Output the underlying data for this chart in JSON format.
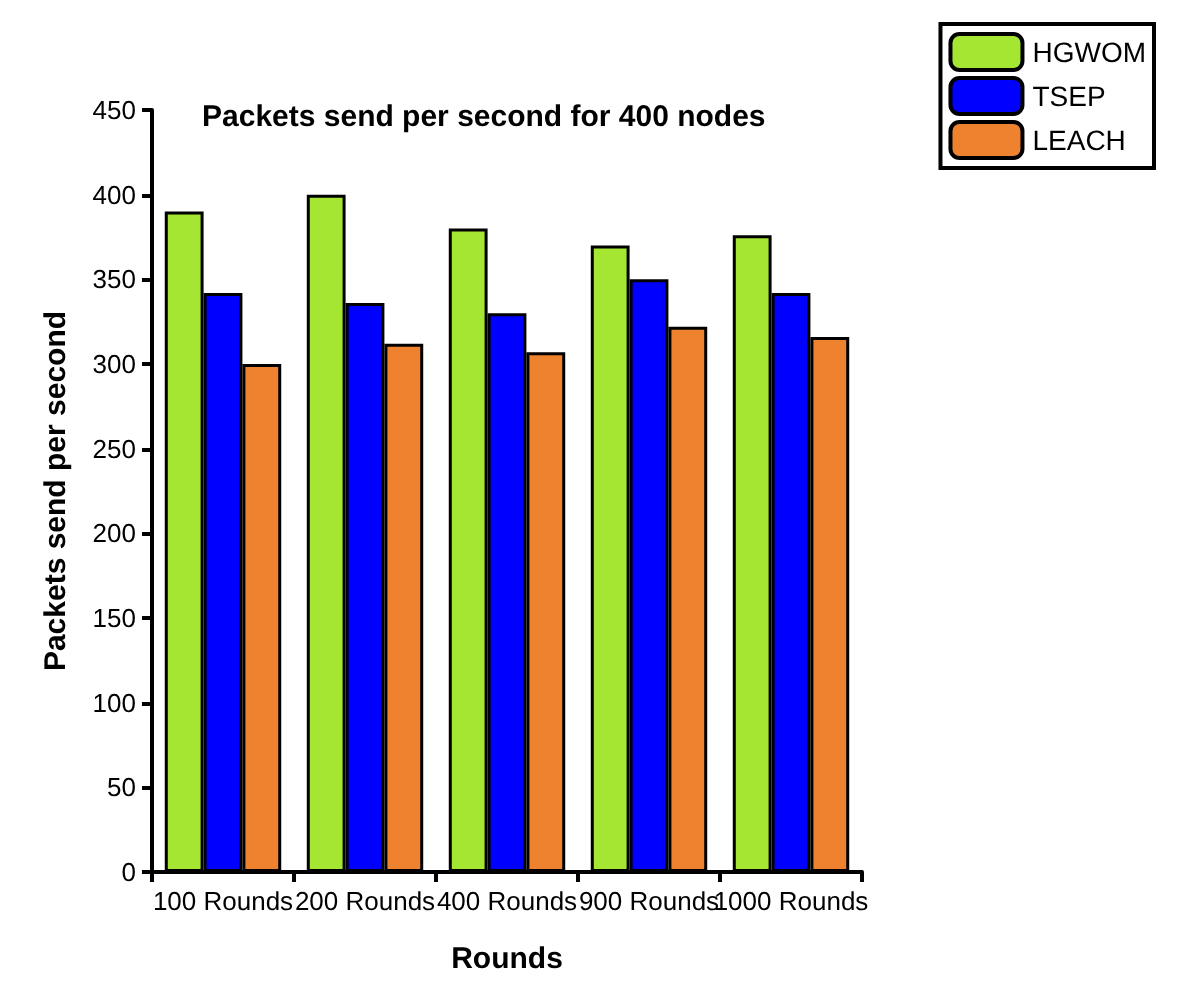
{
  "chart_data": {
    "type": "bar",
    "title": "Packets send per second for 400 nodes",
    "xlabel": "Rounds",
    "ylabel": "Packets send per second",
    "categories": [
      "100 Rounds",
      "200 Rounds",
      "400 Rounds",
      "900 Rounds",
      "1000 Rounds"
    ],
    "series": [
      {
        "name": "HGWOM",
        "color": "#a4e632",
        "values": [
          390,
          400,
          380,
          370,
          376
        ]
      },
      {
        "name": "TSEP",
        "color": "#0000ff",
        "values": [
          342,
          336,
          330,
          350,
          342
        ]
      },
      {
        "name": "LEACH",
        "color": "#ee822e",
        "values": [
          300,
          312,
          307,
          322,
          316
        ]
      }
    ],
    "ylim": [
      0,
      450
    ],
    "yticks": [
      0,
      50,
      100,
      150,
      200,
      250,
      300,
      350,
      400,
      450
    ],
    "grid": false,
    "legend": "top right"
  }
}
